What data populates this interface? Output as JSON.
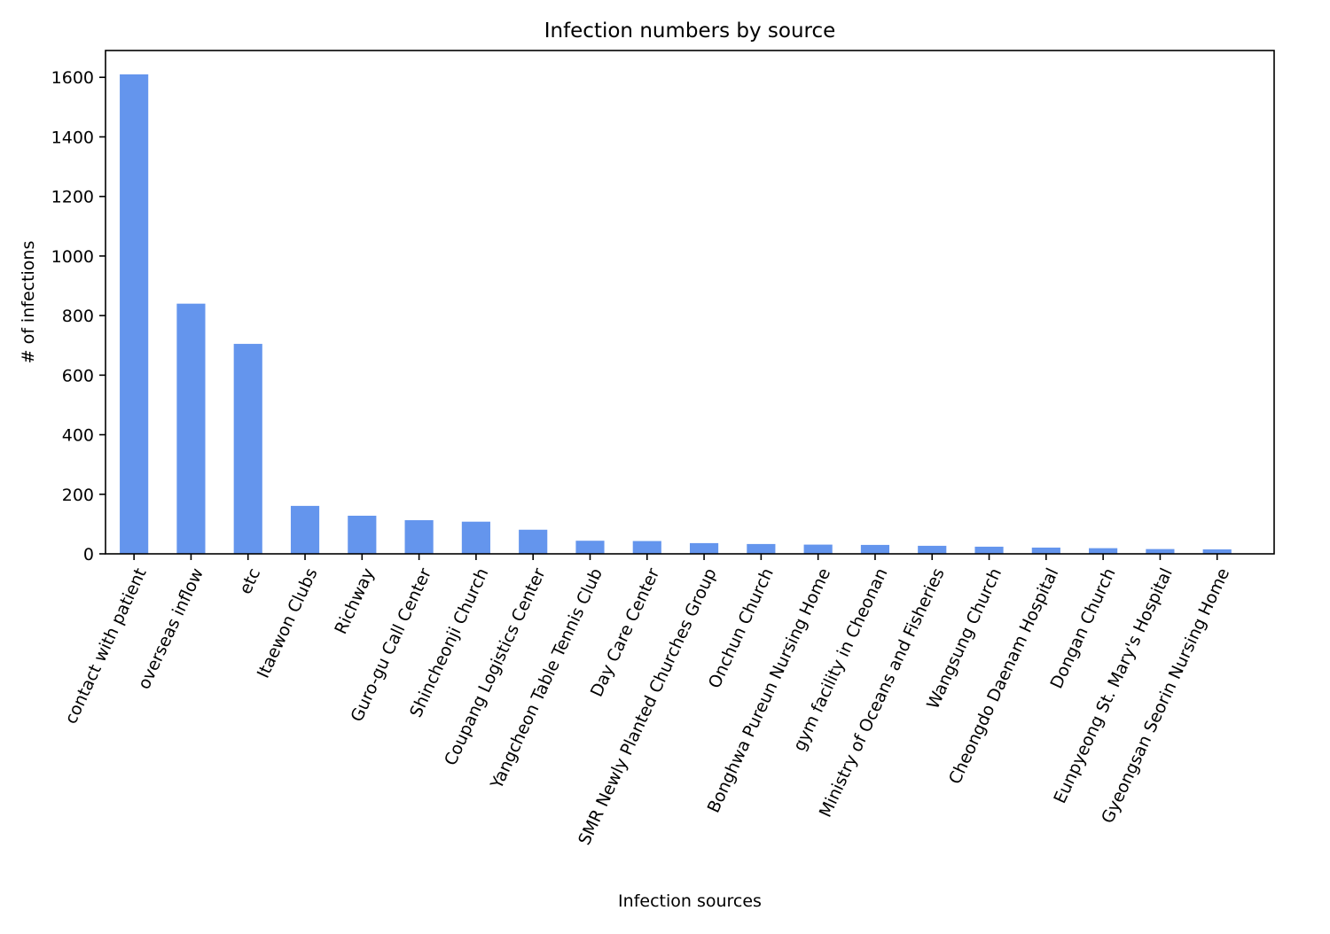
{
  "chart_data": {
    "type": "bar",
    "title": "Infection numbers by source",
    "xlabel": "Infection sources",
    "ylabel": "# of infections",
    "ylim": [
      0,
      1690
    ],
    "yticks": [
      0,
      200,
      400,
      600,
      800,
      1000,
      1200,
      1400,
      1600
    ],
    "grid": false,
    "bar_color": "#6495ed",
    "x_tick_rotation_deg": 65,
    "categories": [
      "contact with patient",
      "overseas inflow",
      "etc",
      "Itaewon Clubs",
      "Richway",
      "Guro-gu Call Center",
      "Shincheonji Church",
      "Coupang Logistics Center",
      "Yangcheon Table Tennis Club",
      "Day Care Center",
      "SMR Newly Planted Churches Group",
      "Onchun Church",
      "Bonghwa Pureun Nursing Home",
      "gym facility in Cheonan",
      "Ministry of Oceans and Fisheries",
      "Wangsung Church",
      "Cheongdo Daenam Hospital",
      "Dongan Church",
      "Eunpyeong St. Mary's Hospital",
      "Gyeongsan Seorin Nursing Home"
    ],
    "values": [
      1610,
      840,
      705,
      161,
      128,
      113,
      108,
      81,
      44,
      43,
      36,
      33,
      31,
      30,
      27,
      24,
      21,
      19,
      16,
      15
    ]
  }
}
